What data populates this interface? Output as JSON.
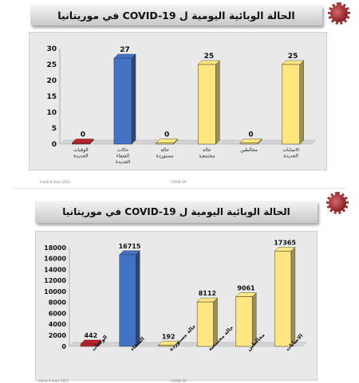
{
  "slides": [
    {
      "title": "الحالة الوبائية اليومية  ل  COVID-19 في موريتانيا",
      "footer_date": "mardi 9 mars 2021",
      "footer_mid": "COVID-19"
    },
    {
      "title": "الحالة الوبائية اليومية  ل  COVID-19 في موريتانيا",
      "footer_date": "mardi 9 mars 2021",
      "footer_mid": "COVID-19"
    }
  ],
  "colors": {
    "red": "#c0202a",
    "blue": "#4472c4",
    "yellow": "#ffe680",
    "yellow_dark": "#b89c20",
    "title_bg": "#d9d9d9"
  },
  "chart_data": [
    {
      "type": "bar",
      "categories": [
        "الوفيات الجديدة",
        "حالات الشفاء الجديدة",
        "حالة مستوردة",
        "حالة مجتمعية",
        "مخالطين",
        "الاصابات الجديدة"
      ],
      "values": [
        0,
        27,
        0,
        25,
        0,
        25
      ],
      "bar_colors": [
        "red",
        "blue",
        "yellow",
        "yellow",
        "yellow",
        "yellow"
      ],
      "data_labels": [
        "0",
        "27",
        "0",
        "25",
        "0",
        "25"
      ],
      "ylim": [
        0,
        30
      ],
      "yticks": [
        0,
        5,
        10,
        15,
        20,
        25,
        30
      ],
      "grid": false,
      "xlabel": "",
      "ylabel": ""
    },
    {
      "type": "bar",
      "categories": [
        "الوفيات",
        "الشفاء",
        "حالة مستوردة",
        "حالة مجتمعية",
        "مخالطين",
        "الاصابات"
      ],
      "values": [
        442,
        16715,
        192,
        8112,
        9061,
        17365
      ],
      "bar_colors": [
        "red",
        "blue",
        "yellow",
        "yellow",
        "yellow",
        "yellow"
      ],
      "data_labels": [
        "442",
        "16715",
        "192",
        "8112",
        "9061",
        "17365"
      ],
      "ylim": [
        0,
        18000
      ],
      "yticks": [
        0,
        2000,
        4000,
        6000,
        8000,
        10000,
        12000,
        14000,
        16000,
        18000
      ],
      "grid": false,
      "xlabel": "",
      "ylabel": "",
      "rotated_labels": true
    }
  ]
}
